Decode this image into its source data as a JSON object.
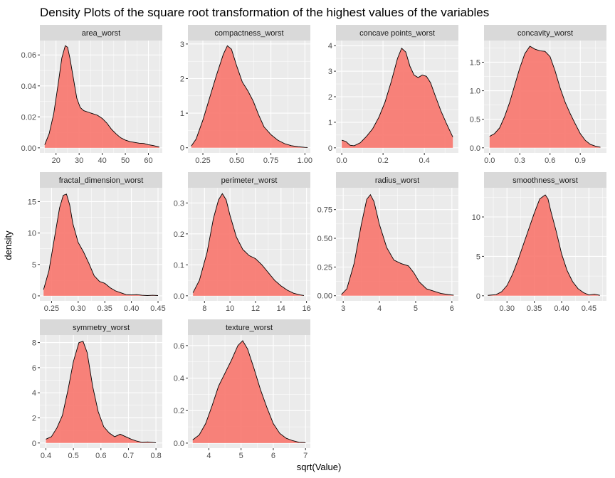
{
  "chart_data": {
    "type": "area",
    "title": "Density Plots of the square root transformation of the highest values of the variables",
    "xlabel": "sqrt(Value)",
    "ylabel": "density",
    "grid": true,
    "fill_color": "#F8766D",
    "fill_opacity": 0.9,
    "line_color": "#000000",
    "panel_background": "#EBEBEB",
    "strip_background": "#D9D9D9",
    "grid_color": "#FFFFFF",
    "panels": [
      {
        "name": "area_worst",
        "xlim": [
          13,
          66
        ],
        "ylim": [
          -0.0033,
          0.0693
        ],
        "xticks": [
          20,
          30,
          40,
          50,
          60
        ],
        "xtick_labels": [
          "20",
          "30",
          "40",
          "50",
          "60"
        ],
        "yticks": [
          0,
          0.02,
          0.04,
          0.06
        ],
        "ytick_labels": [
          "0.00",
          "0.02",
          "0.04",
          "0.06"
        ],
        "x": [
          15.1,
          17,
          19,
          21,
          22.5,
          24,
          25,
          26,
          27.5,
          29,
          30.5,
          32,
          34,
          36,
          38,
          40,
          42,
          44,
          46,
          48,
          50,
          52,
          54,
          56,
          58,
          60,
          62,
          64,
          64.7
        ],
        "y": [
          0.002,
          0.009,
          0.022,
          0.042,
          0.058,
          0.066,
          0.065,
          0.058,
          0.045,
          0.032,
          0.026,
          0.024,
          0.023,
          0.022,
          0.021,
          0.019,
          0.016,
          0.012,
          0.009,
          0.0065,
          0.005,
          0.004,
          0.0035,
          0.003,
          0.0028,
          0.002,
          0.0015,
          0.0008,
          0.0005
        ]
      },
      {
        "name": "compactness_worst",
        "xlim": [
          0.14,
          1.04
        ],
        "ylim": [
          -0.15,
          3.1
        ],
        "xticks": [
          0.25,
          0.5,
          0.75,
          1.0
        ],
        "xtick_labels": [
          "0.25",
          "0.50",
          "0.75",
          "1.00"
        ],
        "yticks": [
          0,
          1,
          2,
          3
        ],
        "ytick_labels": [
          "0",
          "1",
          "2",
          "3"
        ],
        "x": [
          0.165,
          0.2,
          0.25,
          0.3,
          0.35,
          0.4,
          0.43,
          0.46,
          0.5,
          0.54,
          0.58,
          0.62,
          0.66,
          0.7,
          0.75,
          0.8,
          0.85,
          0.9,
          0.95,
          1.0,
          1.02
        ],
        "y": [
          0.05,
          0.25,
          0.8,
          1.45,
          2.1,
          2.7,
          2.95,
          2.85,
          2.35,
          1.9,
          1.65,
          1.35,
          0.95,
          0.6,
          0.38,
          0.22,
          0.12,
          0.06,
          0.03,
          0.01,
          0.005
        ]
      },
      {
        "name": "concave points_worst",
        "xlim": [
          -0.028,
          0.565
        ],
        "ylim": [
          -0.2,
          4.2
        ],
        "xticks": [
          0.0,
          0.2,
          0.4
        ],
        "xtick_labels": [
          "0.0",
          "0.2",
          "0.4"
        ],
        "yticks": [
          0,
          1,
          2,
          3,
          4
        ],
        "ytick_labels": [
          "0",
          "1",
          "2",
          "3",
          "4"
        ],
        "x": [
          0.0,
          0.02,
          0.04,
          0.06,
          0.09,
          0.12,
          0.15,
          0.18,
          0.21,
          0.24,
          0.27,
          0.29,
          0.31,
          0.33,
          0.35,
          0.37,
          0.39,
          0.41,
          0.43,
          0.45,
          0.48,
          0.51,
          0.538
        ],
        "y": [
          0.3,
          0.25,
          0.1,
          0.08,
          0.2,
          0.45,
          0.75,
          1.2,
          1.8,
          2.6,
          3.5,
          3.9,
          3.75,
          3.2,
          2.85,
          2.75,
          2.85,
          2.8,
          2.55,
          2.1,
          1.45,
          0.9,
          0.42
        ]
      },
      {
        "name": "concavity_worst",
        "xlim": [
          -0.055,
          1.16
        ],
        "ylim": [
          -0.09,
          1.88
        ],
        "xticks": [
          0.0,
          0.3,
          0.6,
          0.9
        ],
        "xtick_labels": [
          "0.0",
          "0.3",
          "0.6",
          "0.9"
        ],
        "yticks": [
          0.0,
          0.5,
          1.0,
          1.5
        ],
        "ytick_labels": [
          "0.0",
          "0.5",
          "1.0",
          "1.5"
        ],
        "x": [
          0.0,
          0.05,
          0.1,
          0.15,
          0.2,
          0.25,
          0.3,
          0.35,
          0.4,
          0.45,
          0.5,
          0.55,
          0.6,
          0.65,
          0.7,
          0.75,
          0.8,
          0.85,
          0.9,
          0.95,
          1.0,
          1.05,
          1.1
        ],
        "y": [
          0.2,
          0.25,
          0.35,
          0.55,
          0.8,
          1.1,
          1.4,
          1.65,
          1.78,
          1.73,
          1.7,
          1.69,
          1.6,
          1.35,
          1.05,
          0.8,
          0.6,
          0.42,
          0.25,
          0.13,
          0.06,
          0.03,
          0.01
        ]
      },
      {
        "name": "fractal_dimension_worst",
        "xlim": [
          0.228,
          0.458
        ],
        "ylim": [
          -0.8,
          17.2
        ],
        "xticks": [
          0.25,
          0.3,
          0.35,
          0.4,
          0.45
        ],
        "xtick_labels": [
          "0.25",
          "0.30",
          "0.35",
          "0.40",
          "0.45"
        ],
        "yticks": [
          0,
          5,
          10,
          15
        ],
        "ytick_labels": [
          "0",
          "5",
          "10",
          "15"
        ],
        "x": [
          0.235,
          0.245,
          0.255,
          0.265,
          0.272,
          0.278,
          0.284,
          0.29,
          0.3,
          0.31,
          0.32,
          0.33,
          0.34,
          0.35,
          0.36,
          0.37,
          0.38,
          0.39,
          0.4,
          0.41,
          0.42,
          0.43,
          0.44,
          0.45
        ],
        "y": [
          1.0,
          4.0,
          9.0,
          14.0,
          16.0,
          16.2,
          14.5,
          11.5,
          8.5,
          7.0,
          5.2,
          3.2,
          2.3,
          2.0,
          1.3,
          0.8,
          0.5,
          0.2,
          0.15,
          0.2,
          0.1,
          0.05,
          0.1,
          0.05
        ]
      },
      {
        "name": "perimeter_worst",
        "xlim": [
          6.7,
          16.3
        ],
        "ylim": [
          -0.0165,
          0.349
        ],
        "xticks": [
          8,
          10,
          12,
          14,
          16
        ],
        "xtick_labels": [
          "8",
          "10",
          "12",
          "14",
          "16"
        ],
        "yticks": [
          0.0,
          0.1,
          0.2,
          0.3
        ],
        "ytick_labels": [
          "0.0",
          "0.1",
          "0.2",
          "0.3"
        ],
        "x": [
          7.1,
          7.6,
          8.2,
          8.7,
          9.1,
          9.4,
          9.7,
          10.0,
          10.5,
          11.0,
          11.5,
          12.0,
          12.5,
          13.0,
          13.5,
          14.0,
          14.5,
          15.0,
          15.5,
          15.8
        ],
        "y": [
          0.01,
          0.05,
          0.14,
          0.25,
          0.31,
          0.33,
          0.31,
          0.26,
          0.19,
          0.15,
          0.13,
          0.12,
          0.1,
          0.075,
          0.05,
          0.032,
          0.018,
          0.008,
          0.003,
          0.001
        ]
      },
      {
        "name": "radius_worst",
        "xlim": [
          2.8,
          6.18
        ],
        "ylim": [
          -0.045,
          0.94
        ],
        "xticks": [
          3,
          4,
          5,
          6
        ],
        "xtick_labels": [
          "3",
          "4",
          "5",
          "6"
        ],
        "yticks": [
          0.0,
          0.25,
          0.5,
          0.75
        ],
        "ytick_labels": [
          "0.00",
          "0.25",
          "0.50",
          "0.75"
        ],
        "x": [
          2.95,
          3.1,
          3.3,
          3.5,
          3.65,
          3.75,
          3.85,
          4.0,
          4.2,
          4.4,
          4.6,
          4.8,
          4.95,
          5.1,
          5.3,
          5.5,
          5.7,
          5.9,
          6.05
        ],
        "y": [
          0.01,
          0.06,
          0.28,
          0.62,
          0.84,
          0.88,
          0.82,
          0.62,
          0.42,
          0.31,
          0.28,
          0.26,
          0.2,
          0.12,
          0.06,
          0.04,
          0.02,
          0.01,
          0.005
        ]
      },
      {
        "name": "smoothness_worst",
        "xlim": [
          0.258,
          0.482
        ],
        "ylim": [
          -0.65,
          13.7
        ],
        "xticks": [
          0.3,
          0.35,
          0.4,
          0.45
        ],
        "xtick_labels": [
          "0.30",
          "0.35",
          "0.40",
          "0.45"
        ],
        "yticks": [
          0,
          5,
          10
        ],
        "ytick_labels": [
          "0",
          "5",
          "10"
        ],
        "x": [
          0.265,
          0.28,
          0.29,
          0.3,
          0.31,
          0.32,
          0.33,
          0.34,
          0.35,
          0.36,
          0.37,
          0.375,
          0.38,
          0.39,
          0.4,
          0.41,
          0.42,
          0.43,
          0.44,
          0.45,
          0.46,
          0.47
        ],
        "y": [
          0.05,
          0.15,
          0.5,
          1.3,
          2.7,
          4.5,
          6.5,
          8.5,
          10.5,
          12.3,
          12.8,
          12.3,
          10.8,
          8.2,
          5.3,
          3.2,
          1.8,
          0.9,
          0.4,
          0.1,
          0.2,
          0.05
        ]
      },
      {
        "name": "symmetry_worst",
        "xlim": [
          0.378,
          0.823
        ],
        "ylim": [
          -0.41,
          8.6
        ],
        "xticks": [
          0.4,
          0.5,
          0.6,
          0.7,
          0.8
        ],
        "xtick_labels": [
          "0.4",
          "0.5",
          "0.6",
          "0.7",
          "0.8"
        ],
        "yticks": [
          0,
          2,
          4,
          6,
          8
        ],
        "ytick_labels": [
          "0",
          "2",
          "4",
          "6",
          "8"
        ],
        "x": [
          0.4,
          0.42,
          0.44,
          0.46,
          0.48,
          0.5,
          0.52,
          0.535,
          0.55,
          0.57,
          0.59,
          0.61,
          0.63,
          0.65,
          0.67,
          0.69,
          0.71,
          0.73,
          0.75,
          0.77,
          0.8
        ],
        "y": [
          0.3,
          0.5,
          1.2,
          2.2,
          4.2,
          6.5,
          8.0,
          8.1,
          7.2,
          4.5,
          2.5,
          1.3,
          0.8,
          0.5,
          0.7,
          0.5,
          0.3,
          0.15,
          0.05,
          0.08,
          0.02
        ]
      },
      {
        "name": "texture_worst",
        "xlim": [
          3.35,
          7.15
        ],
        "ylim": [
          -0.031,
          0.665
        ],
        "xticks": [
          4,
          5,
          6,
          7
        ],
        "xtick_labels": [
          "4",
          "5",
          "6",
          "7"
        ],
        "yticks": [
          0.0,
          0.2,
          0.4,
          0.6
        ],
        "ytick_labels": [
          "0.0",
          "0.2",
          "0.4",
          "0.6"
        ],
        "x": [
          3.5,
          3.7,
          3.9,
          4.1,
          4.3,
          4.5,
          4.7,
          4.9,
          5.05,
          5.2,
          5.4,
          5.6,
          5.8,
          6.0,
          6.2,
          6.4,
          6.6,
          6.8,
          7.0
        ],
        "y": [
          0.02,
          0.05,
          0.12,
          0.23,
          0.35,
          0.43,
          0.51,
          0.6,
          0.63,
          0.58,
          0.46,
          0.33,
          0.22,
          0.12,
          0.06,
          0.03,
          0.015,
          0.005,
          0.003
        ]
      }
    ]
  }
}
